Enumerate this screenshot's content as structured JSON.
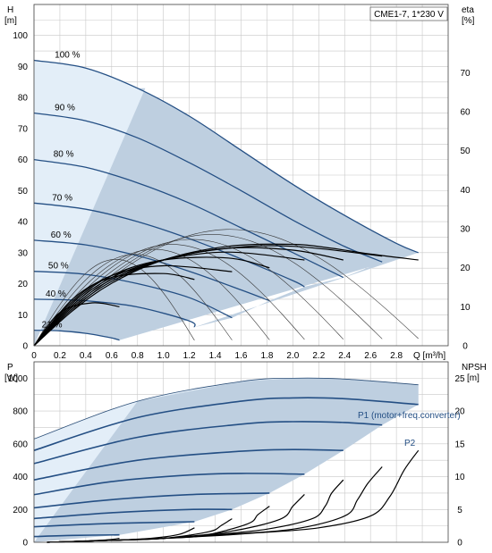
{
  "colors": {
    "envelope_fill": "#b7c9dc",
    "envelope_light": "#e3eef8",
    "pump_curve": "#244f84",
    "thin_curve": "#2c4f78",
    "black": "#000000",
    "grid": "#c8c8c8"
  },
  "chart_data": [
    {
      "type": "line",
      "title": "CME1-7, 1*230 V",
      "xlabel": "Q [m³/h]",
      "ylabel": "H [m]",
      "y2label": "eta [%]",
      "xlim": [
        0,
        3.2
      ],
      "ylim": [
        0,
        110
      ],
      "y2lim": [
        0,
        87.5
      ],
      "x_ticks": [
        "0",
        "0.2",
        "0.4",
        "0.6",
        "0.8",
        "1.0",
        "1.2",
        "1.4",
        "1.6",
        "1.8",
        "2.0",
        "2.2",
        "2.4",
        "2.6",
        "2.8"
      ],
      "x_tick_values": [
        0,
        0.2,
        0.4,
        0.6,
        0.8,
        1.0,
        1.2,
        1.4,
        1.6,
        1.8,
        2.0,
        2.2,
        2.4,
        2.6,
        2.8
      ],
      "y_ticks": [
        "0",
        "10",
        "20",
        "30",
        "40",
        "50",
        "60",
        "70",
        "80",
        "90",
        "100"
      ],
      "y_tick_values": [
        0,
        10,
        20,
        30,
        40,
        50,
        60,
        70,
        80,
        90,
        100
      ],
      "y2_ticks": [
        "0",
        "10",
        "20",
        "30",
        "40",
        "50",
        "60",
        "70"
      ],
      "y2_tick_values": [
        0,
        10,
        20,
        30,
        40,
        50,
        60,
        70
      ],
      "grid": true,
      "speed_labels": [
        "100 %",
        "90 %",
        "80 %",
        "70 %",
        "60 %",
        "50 %",
        "40 %",
        "21 %"
      ],
      "series": [
        {
          "name": "100 %",
          "x": [
            0,
            0.4,
            0.8,
            1.2,
            1.6,
            2.0,
            2.4,
            2.8,
            2.97
          ],
          "y": [
            92,
            89.5,
            83,
            74,
            63,
            52,
            42,
            33,
            30
          ]
        },
        {
          "name": "90 %",
          "x": [
            0,
            0.4,
            0.8,
            1.2,
            1.6,
            2.0,
            2.4,
            2.69
          ],
          "y": [
            75,
            72.5,
            67,
            59,
            50,
            40.5,
            32,
            27
          ]
        },
        {
          "name": "80 %",
          "x": [
            0,
            0.4,
            0.8,
            1.2,
            1.6,
            2.0,
            2.39
          ],
          "y": [
            60,
            57.5,
            52.5,
            46,
            38,
            30,
            22
          ]
        },
        {
          "name": "70 %",
          "x": [
            0,
            0.4,
            0.8,
            1.2,
            1.6,
            2.0,
            2.09
          ],
          "y": [
            46,
            44,
            40,
            34.5,
            28,
            21,
            19
          ]
        },
        {
          "name": "60 %",
          "x": [
            0,
            0.4,
            0.8,
            1.2,
            1.6,
            1.82
          ],
          "y": [
            34,
            32.5,
            29,
            24,
            18,
            14.5
          ]
        },
        {
          "name": "50 %",
          "x": [
            0,
            0.4,
            0.8,
            1.2,
            1.53
          ],
          "y": [
            24,
            23,
            20,
            15.5,
            9
          ]
        },
        {
          "name": "40 %",
          "x": [
            0,
            0.4,
            0.8,
            1.2,
            1.24
          ],
          "y": [
            15,
            14.5,
            12.5,
            8,
            6
          ]
        },
        {
          "name": "21 %",
          "x": [
            0,
            0.2,
            0.4,
            0.6,
            0.66
          ],
          "y": [
            5,
            4.8,
            4,
            2.5,
            1.8
          ]
        }
      ],
      "efficiency_curves_eta": [
        {
          "x": [
            0,
            0.3,
            0.6,
            1.0,
            1.5,
            2.0,
            2.3,
            2.6,
            2.97
          ],
          "y": [
            0,
            9,
            16,
            22,
            25.5,
            26,
            25,
            23.5,
            22
          ]
        },
        {
          "x": [
            0,
            0.3,
            0.6,
            1.0,
            1.5,
            2.0,
            2.69
          ],
          "y": [
            0,
            9.5,
            16.5,
            22,
            25,
            25.5,
            23
          ]
        },
        {
          "x": [
            0,
            0.3,
            0.6,
            1.0,
            1.5,
            2.0,
            2.39
          ],
          "y": [
            0,
            10,
            17,
            22,
            25,
            24.5,
            22
          ]
        },
        {
          "x": [
            0,
            0.3,
            0.6,
            1.0,
            1.5,
            2.09
          ],
          "y": [
            0,
            10.5,
            17.5,
            22,
            24,
            22
          ]
        },
        {
          "x": [
            0,
            0.3,
            0.6,
            1.0,
            1.5,
            1.82
          ],
          "y": [
            0,
            11,
            18,
            22,
            22.5,
            20
          ]
        },
        {
          "x": [
            0,
            0.3,
            0.6,
            1.0,
            1.53
          ],
          "y": [
            0,
            11.5,
            18,
            20.5,
            19
          ]
        },
        {
          "x": [
            0,
            0.3,
            0.6,
            1.0,
            1.24
          ],
          "y": [
            0,
            12,
            17.5,
            18.5,
            17
          ]
        },
        {
          "x": [
            0,
            0.2,
            0.45,
            0.66
          ],
          "y": [
            0,
            8.5,
            11,
            10
          ]
        }
      ]
    },
    {
      "type": "line",
      "xlabel": "Q [m³/h]",
      "ylabel": "P [W]",
      "y2label": "NPSH [m]",
      "xlim": [
        0,
        3.2
      ],
      "ylim": [
        0,
        1100
      ],
      "y2lim": [
        0,
        27.5
      ],
      "y_ticks": [
        "0",
        "200",
        "400",
        "600",
        "800",
        "1000"
      ],
      "y_tick_values": [
        0,
        200,
        400,
        600,
        800,
        1000
      ],
      "y2_ticks": [
        "0",
        "5",
        "10",
        "15",
        "20",
        "25"
      ],
      "y2_tick_values": [
        0,
        5,
        10,
        15,
        20,
        25
      ],
      "grid": true,
      "curve_labels": [
        "P1 (motor+freq.converter)",
        "P2"
      ],
      "series": [
        {
          "name": "P1 (motor+freq.converter)",
          "x": [
            0,
            0.8,
            1.6,
            2.0,
            2.4,
            2.97
          ],
          "y": [
            630,
            860,
            980,
            1000,
            995,
            960
          ]
        },
        {
          "name": "P2",
          "x": [
            0,
            0.8,
            1.6,
            2.0,
            2.4,
            2.97
          ],
          "y": [
            560,
            760,
            860,
            880,
            875,
            840
          ]
        },
        {
          "x": [
            0,
            0.8,
            1.6,
            2.0,
            2.4,
            2.69
          ],
          "y": [
            480,
            640,
            720,
            735,
            730,
            715
          ]
        },
        {
          "x": [
            0,
            0.8,
            1.6,
            2.0,
            2.39
          ],
          "y": [
            380,
            500,
            555,
            565,
            560
          ]
        },
        {
          "x": [
            0,
            0.6,
            1.2,
            1.6,
            2.09
          ],
          "y": [
            290,
            370,
            410,
            420,
            415
          ]
        },
        {
          "x": [
            0,
            0.6,
            1.2,
            1.82
          ],
          "y": [
            210,
            260,
            290,
            300
          ]
        },
        {
          "x": [
            0,
            0.6,
            1.2,
            1.53
          ],
          "y": [
            145,
            180,
            200,
            200
          ]
        },
        {
          "x": [
            0,
            0.6,
            1.24
          ],
          "y": [
            95,
            115,
            125
          ]
        },
        {
          "x": [
            0,
            0.3,
            0.66
          ],
          "y": [
            35,
            42,
            45
          ]
        }
      ],
      "npsh_curves": [
        {
          "x": [
            0.1,
            0.6,
            1.0,
            1.4,
            1.7,
            2.2,
            2.6,
            2.75,
            2.86,
            2.97
          ],
          "y": [
            0,
            0.3,
            0.6,
            1,
            1.4,
            2.2,
            4,
            7,
            11,
            14
          ]
        },
        {
          "x": [
            0.1,
            0.6,
            1.0,
            1.4,
            2.0,
            2.4,
            2.5,
            2.58,
            2.69
          ],
          "y": [
            0,
            0.3,
            0.6,
            1.1,
            2,
            4,
            6.5,
            9,
            11.5
          ]
        },
        {
          "x": [
            0.1,
            0.6,
            1.0,
            1.4,
            1.8,
            2.15,
            2.25,
            2.3,
            2.39
          ],
          "y": [
            0,
            0.3,
            0.6,
            1.2,
            2,
            3.6,
            5.5,
            7.5,
            9.5
          ]
        },
        {
          "x": [
            0.1,
            0.6,
            1.0,
            1.5,
            1.9,
            2.0,
            2.09
          ],
          "y": [
            0,
            0.3,
            0.6,
            1.6,
            3.5,
            5.5,
            7.3
          ]
        },
        {
          "x": [
            0.1,
            0.6,
            1.0,
            1.3,
            1.65,
            1.73,
            1.82
          ],
          "y": [
            0,
            0.3,
            0.6,
            1,
            2.8,
            4.2,
            5.5
          ]
        },
        {
          "x": [
            0.1,
            0.6,
            1.0,
            1.35,
            1.45,
            1.53
          ],
          "y": [
            0,
            0.3,
            0.6,
            1.6,
            2.6,
            3.6
          ]
        },
        {
          "x": [
            0.1,
            0.6,
            0.9,
            1.12,
            1.24
          ],
          "y": [
            0,
            0.3,
            0.6,
            1.2,
            2.2
          ]
        },
        {
          "x": [
            0.1,
            0.4,
            0.58,
            0.66
          ],
          "y": [
            0,
            0.2,
            0.4,
            0.6
          ]
        }
      ]
    }
  ]
}
